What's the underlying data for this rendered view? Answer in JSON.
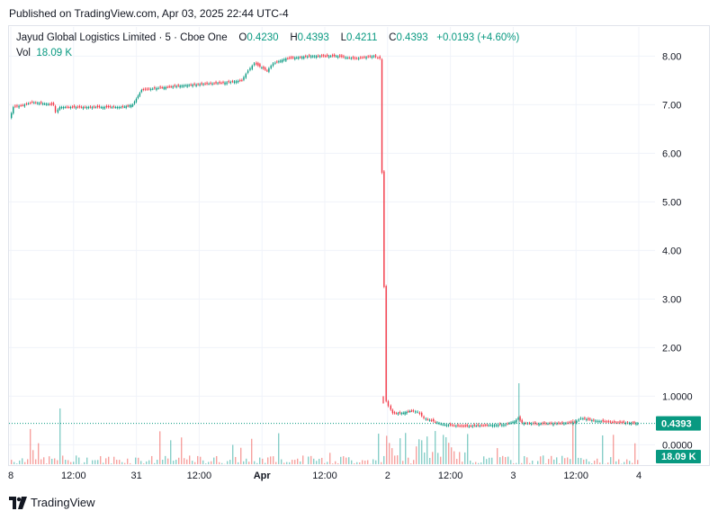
{
  "header": {
    "published": "Published on TradingView.com, Apr 03, 2025 22:44 UTC-4"
  },
  "legend": {
    "symbol": "Jayud Global Logistics Limited · 5 · Cboe One",
    "o_label": "O",
    "o_value": "0.4230",
    "h_label": "H",
    "h_value": "0.4393",
    "l_label": "L",
    "l_value": "0.4211",
    "c_label": "C",
    "c_value": "0.4393",
    "change": "+0.0193 (+4.60%)",
    "vol_label": "Vol",
    "vol_value": "18.09 K"
  },
  "footer": {
    "brand": "TradingView"
  },
  "colors": {
    "up": "#089981",
    "down": "#f23645",
    "grid": "#f0f3fa",
    "text": "#131722",
    "axis_text": "#131722"
  },
  "chart_data": {
    "type": "candlestick",
    "y_ticks": [
      "8.00",
      "7.00",
      "6.00",
      "5.00",
      "4.00",
      "3.00",
      "2.00",
      "1.0000",
      "0.0000"
    ],
    "y_tick_values": [
      8,
      7,
      6,
      5,
      4,
      3,
      2,
      1,
      0
    ],
    "ylim": [
      -0.4,
      8.6
    ],
    "x_ticks": [
      "8",
      "12:00",
      "31",
      "12:00",
      "Apr",
      "12:00",
      "2",
      "12:00",
      "3",
      "12:00",
      "4"
    ],
    "x_tick_positions": [
      0,
      0.5,
      1,
      1.5,
      2,
      2.5,
      3,
      3.5,
      4,
      4.5,
      5
    ],
    "x_range": [
      0,
      5
    ],
    "last_price": "0.4393",
    "last_price_value": 0.4393,
    "volume_label": "18.09 K",
    "price_path": [
      [
        0.0,
        6.7
      ],
      [
        0.03,
        6.95
      ],
      [
        0.12,
        7.0
      ],
      [
        0.18,
        7.05
      ],
      [
        0.35,
        7.0
      ],
      [
        0.37,
        6.85
      ],
      [
        0.4,
        6.95
      ],
      [
        0.6,
        6.95
      ],
      [
        0.9,
        6.95
      ],
      [
        0.98,
        7.0
      ],
      [
        1.05,
        7.3
      ],
      [
        1.2,
        7.35
      ],
      [
        1.4,
        7.4
      ],
      [
        1.7,
        7.45
      ],
      [
        1.85,
        7.5
      ],
      [
        1.9,
        7.7
      ],
      [
        1.95,
        7.85
      ],
      [
        2.05,
        7.7
      ],
      [
        2.1,
        7.85
      ],
      [
        2.2,
        7.95
      ],
      [
        2.4,
        8.0
      ],
      [
        2.6,
        8.0
      ],
      [
        2.75,
        7.95
      ],
      [
        2.9,
        8.0
      ],
      [
        2.95,
        7.95
      ],
      [
        3.0,
        0.9
      ],
      [
        3.02,
        0.8
      ],
      [
        3.05,
        0.65
      ],
      [
        3.12,
        0.65
      ],
      [
        3.2,
        0.7
      ],
      [
        3.25,
        0.68
      ],
      [
        3.3,
        0.55
      ],
      [
        3.45,
        0.42
      ],
      [
        3.6,
        0.38
      ],
      [
        3.8,
        0.4
      ],
      [
        3.95,
        0.42
      ],
      [
        4.02,
        0.48
      ],
      [
        4.05,
        0.55
      ],
      [
        4.08,
        0.45
      ],
      [
        4.2,
        0.43
      ],
      [
        4.4,
        0.44
      ],
      [
        4.5,
        0.46
      ],
      [
        4.55,
        0.55
      ],
      [
        4.65,
        0.5
      ],
      [
        4.8,
        0.46
      ],
      [
        4.92,
        0.45
      ],
      [
        5.0,
        0.44
      ]
    ]
  }
}
